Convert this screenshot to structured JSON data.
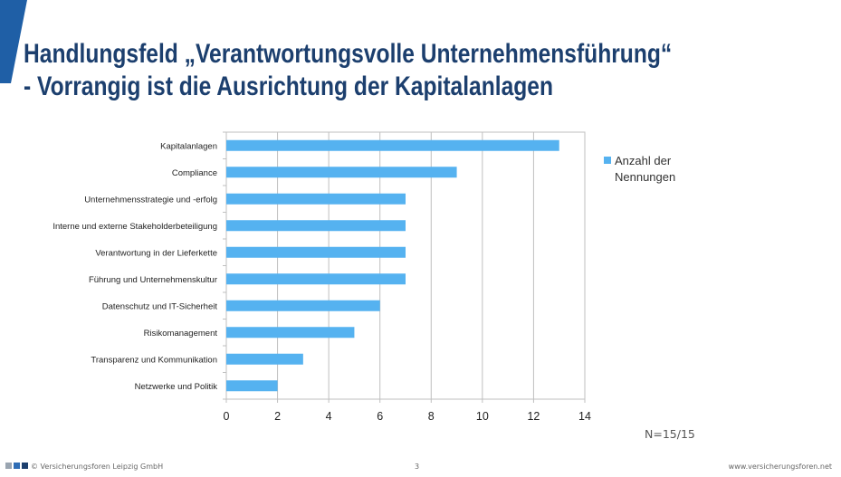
{
  "slide": {
    "title_line1": "Handlungsfeld „Verantwortungsvolle Unternehmensführung“",
    "title_line2": "- Vorrangig ist die Ausrichtung der Kapitalanlagen",
    "note": "N=15/15",
    "copyright": "© Versicherungsforen Leipzig GmbH",
    "page_number": "3",
    "website": "www.versicherungsforen.net"
  },
  "colors": {
    "title": "#1c3f6e",
    "accent": "#1f5fa6",
    "bar": "#55b2f0",
    "grid": "#bfbfbf",
    "footer_squares": [
      "#9aa5b1",
      "#2f6db5",
      "#1c3f6e"
    ]
  },
  "chart_data": {
    "type": "bar",
    "orientation": "horizontal",
    "categories": [
      "Kapitalanlagen",
      "Compliance",
      "Unternehmensstrategie und -erfolg",
      "Interne und externe Stakeholderbeteiligung",
      "Verantwortung in der Lieferkette",
      "Führung und Unternehmenskultur",
      "Datenschutz und IT-Sicherheit",
      "Risikomanagement",
      "Transparenz und Kommunikation",
      "Netzwerke und Politik"
    ],
    "series": [
      {
        "name": "Anzahl der Nennungen",
        "values": [
          13,
          9,
          7,
          7,
          7,
          7,
          6,
          5,
          3,
          2
        ]
      }
    ],
    "xlim": [
      0,
      14
    ],
    "xticks": [
      "0",
      "2",
      "4",
      "6",
      "8",
      "10",
      "12",
      "14"
    ],
    "grid": true,
    "legend_position": "right",
    "legend_lines": [
      "Anzahl der",
      "Nennungen"
    ]
  }
}
